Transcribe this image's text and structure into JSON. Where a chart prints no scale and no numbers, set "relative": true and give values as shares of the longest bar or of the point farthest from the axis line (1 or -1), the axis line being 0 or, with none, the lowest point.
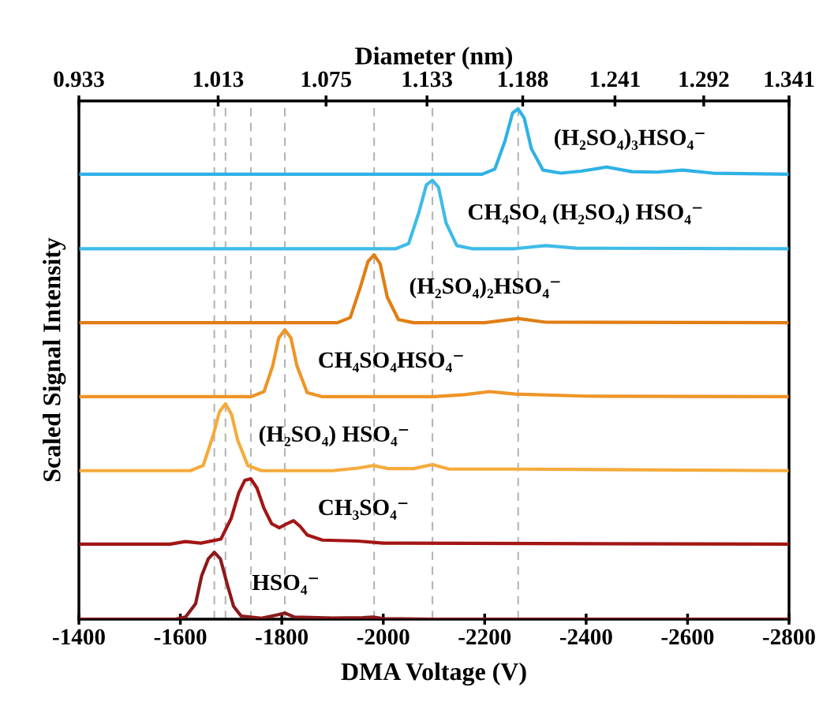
{
  "chart_data": {
    "type": "line",
    "relative": true,
    "xlabel": "DMA Voltage (V)",
    "ylabel": "Scaled Signal Intensity",
    "x2label": "Diameter (nm)",
    "xlim": [
      -1400,
      -2800
    ],
    "xticks": [
      -1400,
      -1600,
      -1800,
      -2000,
      -2200,
      -2400,
      -2600,
      -2800
    ],
    "x2lim": [
      0.933,
      1.341
    ],
    "x2ticks": [
      {
        "value": 0.933,
        "label": "0.933"
      },
      {
        "value": 1.013,
        "label": "1.013"
      },
      {
        "value": 1.075,
        "label": "1.075"
      },
      {
        "value": 1.133,
        "label": "1.133"
      },
      {
        "value": 1.188,
        "label": "1.188"
      },
      {
        "value": 1.241,
        "label": "1.241"
      },
      {
        "value": 1.292,
        "label": "1.292"
      },
      {
        "value": 1.341,
        "label": "1.341"
      }
    ],
    "grid": false,
    "legend": false,
    "marker": "none",
    "line_style": "solid",
    "ref_lines": [
      {
        "axis": "x",
        "value": -1667,
        "color": "#b4b4b4",
        "line_style": "dashed"
      },
      {
        "axis": "x",
        "value": -1689,
        "color": "#b4b4b4",
        "line_style": "dashed"
      },
      {
        "axis": "x",
        "value": -1739,
        "color": "#b4b4b4",
        "line_style": "dashed"
      },
      {
        "axis": "x",
        "value": -1806,
        "color": "#b4b4b4",
        "line_style": "dashed"
      },
      {
        "axis": "x",
        "value": -1982,
        "color": "#b4b4b4",
        "line_style": "dashed"
      },
      {
        "axis": "x",
        "value": -2097,
        "color": "#b4b4b4",
        "line_style": "dashed"
      },
      {
        "axis": "x",
        "value": -2266,
        "color": "#b4b4b4",
        "line_style": "dashed"
      }
    ],
    "series": [
      {
        "name": "HSO₄⁻",
        "color": "#8b1a1a",
        "x": [
          -1400,
          -1590,
          -1610,
          -1630,
          -1642,
          -1655,
          -1667,
          -1679,
          -1692,
          -1705,
          -1720,
          -1760,
          -1790,
          -1806,
          -1825,
          -1900,
          -1960,
          -1980,
          -2000,
          -2100,
          -2800
        ],
        "values": [
          0,
          0,
          0.004,
          0.03,
          0.085,
          0.118,
          0.131,
          0.118,
          0.07,
          0.025,
          0.006,
          0.002,
          0.008,
          0.012,
          0.004,
          0.002,
          0.003,
          0.004,
          0.001,
          0,
          0
        ]
      },
      {
        "name": "CH₃SO₄⁻",
        "color": "#a31515",
        "x": [
          -1400,
          -1580,
          -1610,
          -1640,
          -1680,
          -1700,
          -1715,
          -1727,
          -1739,
          -1751,
          -1765,
          -1780,
          -1795,
          -1810,
          -1823,
          -1836,
          -1850,
          -1880,
          -1950,
          -2000,
          -2800
        ],
        "values": [
          0.147,
          0.147,
          0.152,
          0.149,
          0.157,
          0.197,
          0.247,
          0.272,
          0.275,
          0.257,
          0.217,
          0.187,
          0.179,
          0.187,
          0.193,
          0.182,
          0.165,
          0.155,
          0.153,
          0.149,
          0.147
        ]
      },
      {
        "name": "(H₂SO₄) HSO₄⁻",
        "color": "#f5ab3c",
        "x": [
          -1400,
          -1620,
          -1645,
          -1665,
          -1677,
          -1689,
          -1701,
          -1713,
          -1733,
          -1760,
          -1900,
          -1950,
          -1980,
          -2010,
          -2060,
          -2097,
          -2130,
          -2266,
          -2800
        ],
        "values": [
          0.291,
          0.291,
          0.301,
          0.361,
          0.406,
          0.422,
          0.401,
          0.351,
          0.301,
          0.291,
          0.291,
          0.296,
          0.301,
          0.295,
          0.295,
          0.303,
          0.294,
          0.294,
          0.291
        ]
      },
      {
        "name": "CH₄SO₄HSO₄⁻",
        "color": "#ee9526",
        "x": [
          -1400,
          -1740,
          -1765,
          -1782,
          -1794,
          -1806,
          -1818,
          -1830,
          -1850,
          -1880,
          -2100,
          -2160,
          -2210,
          -2260,
          -2400,
          -2800
        ],
        "values": [
          0.436,
          0.436,
          0.446,
          0.496,
          0.551,
          0.567,
          0.551,
          0.496,
          0.444,
          0.436,
          0.436,
          0.44,
          0.446,
          0.441,
          0.437,
          0.436
        ]
      },
      {
        "name": "(H₂SO₄)₂HSO₄⁻",
        "color": "#e07e14",
        "x": [
          -1400,
          -1910,
          -1935,
          -1955,
          -1970,
          -1982,
          -1994,
          -2008,
          -2030,
          -2060,
          -2200,
          -2266,
          -2320,
          -2800
        ],
        "values": [
          0.581,
          0.581,
          0.591,
          0.651,
          0.701,
          0.714,
          0.696,
          0.631,
          0.587,
          0.581,
          0.581,
          0.589,
          0.582,
          0.581
        ]
      },
      {
        "name": "CH₄SO₄ (H₂SO₄) HSO₄⁻",
        "color": "#3fbbe8",
        "x": [
          -1400,
          -2025,
          -2050,
          -2070,
          -2085,
          -2097,
          -2109,
          -2124,
          -2145,
          -2175,
          -2260,
          -2320,
          -2380,
          -2800
        ],
        "values": [
          0.726,
          0.726,
          0.736,
          0.796,
          0.851,
          0.86,
          0.846,
          0.776,
          0.732,
          0.726,
          0.726,
          0.732,
          0.727,
          0.726
        ]
      },
      {
        "name": "(H₂SO₄)₃HSO₄⁻",
        "color": "#2fb2e6",
        "x": [
          -1400,
          -2195,
          -2220,
          -2240,
          -2255,
          -2266,
          -2278,
          -2292,
          -2315,
          -2350,
          -2390,
          -2440,
          -2490,
          -2540,
          -2590,
          -2650,
          -2800
        ],
        "values": [
          0.872,
          0.872,
          0.882,
          0.937,
          0.992,
          1.0,
          0.982,
          0.922,
          0.88,
          0.874,
          0.878,
          0.886,
          0.877,
          0.876,
          0.88,
          0.874,
          0.872
        ]
      }
    ]
  }
}
